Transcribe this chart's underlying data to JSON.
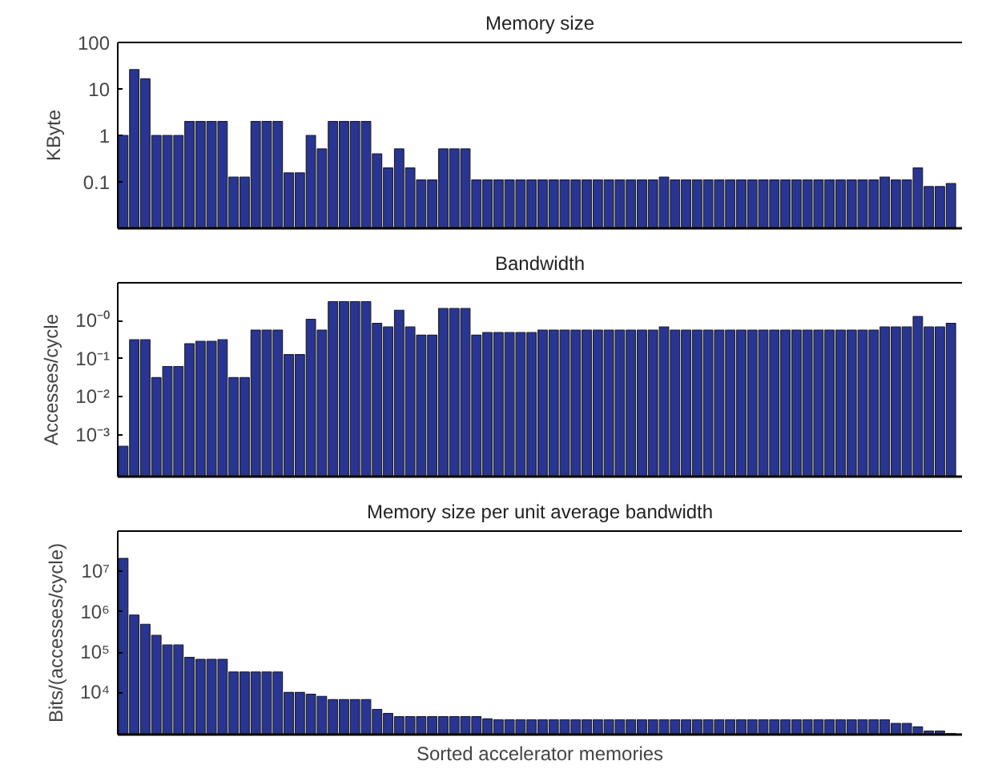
{
  "chart_data": [
    {
      "type": "bar",
      "title": "Memory size",
      "ylabel": "KByte",
      "log": true,
      "grid": false,
      "tick_labels": "y",
      "color": "#283593",
      "categories": [
        null,
        null,
        null,
        null,
        null,
        null,
        null,
        null,
        null,
        null,
        null,
        null,
        null,
        null,
        null,
        null,
        null,
        null,
        null,
        null,
        null,
        null,
        null,
        null,
        null,
        null,
        null,
        null,
        null,
        null,
        null,
        null,
        null,
        null,
        null,
        null,
        null,
        null,
        null,
        null,
        null,
        null,
        null,
        null,
        null,
        null,
        null,
        null,
        null,
        null,
        null,
        null,
        null,
        null,
        null,
        null,
        null,
        null,
        null,
        null,
        null,
        null,
        null,
        null,
        null,
        null,
        null,
        null,
        null,
        null,
        null,
        null,
        null,
        null,
        null,
        null
      ],
      "values": [
        1,
        26,
        16.5,
        1,
        1,
        1,
        2,
        2,
        2,
        2,
        0.127,
        0.127,
        2,
        2,
        2,
        0.156,
        0.156,
        1,
        0.51,
        2,
        2,
        2,
        2,
        0.4,
        0.2,
        0.51,
        0.2,
        0.11,
        0.11,
        0.51,
        0.51,
        0.51,
        0.11,
        0.11,
        0.11,
        0.11,
        0.11,
        0.11,
        0.11,
        0.11,
        0.11,
        0.11,
        0.11,
        0.11,
        0.11,
        0.11,
        0.11,
        0.11,
        0.11,
        0.127,
        0.11,
        0.11,
        0.11,
        0.11,
        0.11,
        0.11,
        0.11,
        0.11,
        0.11,
        0.11,
        0.11,
        0.11,
        0.11,
        0.11,
        0.11,
        0.11,
        0.11,
        0.11,
        0.11,
        0.127,
        0.11,
        0.11,
        0.2,
        0.079,
        0.079,
        0.092
      ],
      "ylim": [
        0.01,
        100
      ],
      "yticks": [
        0.1,
        1,
        10,
        100
      ]
    },
    {
      "type": "bar",
      "title": "Bandwidth",
      "ylabel": "Accesses/cycle",
      "log": true,
      "grid": false,
      "tick_labels": "y",
      "color": "#283593",
      "categories": [
        null,
        null,
        null,
        null,
        null,
        null,
        null,
        null,
        null,
        null,
        null,
        null,
        null,
        null,
        null,
        null,
        null,
        null,
        null,
        null,
        null,
        null,
        null,
        null,
        null,
        null,
        null,
        null,
        null,
        null,
        null,
        null,
        null,
        null,
        null,
        null,
        null,
        null,
        null,
        null,
        null,
        null,
        null,
        null,
        null,
        null,
        null,
        null,
        null,
        null,
        null,
        null,
        null,
        null,
        null,
        null,
        null,
        null,
        null,
        null,
        null,
        null,
        null,
        null,
        null,
        null,
        null,
        null,
        null,
        null,
        null,
        null,
        null,
        null,
        null,
        null
      ],
      "values": [
        0.0005,
        0.32,
        0.32,
        0.032,
        0.063,
        0.063,
        0.25,
        0.29,
        0.29,
        0.32,
        0.032,
        0.032,
        0.57,
        0.57,
        0.57,
        0.13,
        0.13,
        1.1,
        0.57,
        3.2,
        3.2,
        3.2,
        3.2,
        0.86,
        0.69,
        1.9,
        0.69,
        0.42,
        0.42,
        2.1,
        2.1,
        2.1,
        0.42,
        0.49,
        0.49,
        0.49,
        0.49,
        0.49,
        0.57,
        0.57,
        0.57,
        0.57,
        0.57,
        0.57,
        0.57,
        0.57,
        0.57,
        0.57,
        0.57,
        0.69,
        0.57,
        0.57,
        0.57,
        0.57,
        0.57,
        0.57,
        0.57,
        0.57,
        0.57,
        0.57,
        0.57,
        0.57,
        0.57,
        0.57,
        0.57,
        0.57,
        0.57,
        0.57,
        0.57,
        0.69,
        0.69,
        0.69,
        1.3,
        0.69,
        0.69,
        0.86
      ],
      "ylim": [
        8e-05,
        10
      ],
      "yticks": [
        {
          "value": 0.001,
          "label": "10⁻³"
        },
        {
          "value": 0.01,
          "label": "10⁻²"
        },
        {
          "value": 0.1,
          "label": "10⁻¹"
        },
        {
          "value": 1,
          "label": "10⁻⁰"
        }
      ]
    },
    {
      "type": "bar",
      "title": "Memory size per unit average bandwidth",
      "ylabel": "Bits/(accesses/cycle)",
      "xlabel": "Sorted accelerator memories",
      "log": true,
      "grid": false,
      "tick_labels": "y",
      "color": "#283593",
      "categories": [
        null,
        null,
        null,
        null,
        null,
        null,
        null,
        null,
        null,
        null,
        null,
        null,
        null,
        null,
        null,
        null,
        null,
        null,
        null,
        null,
        null,
        null,
        null,
        null,
        null,
        null,
        null,
        null,
        null,
        null,
        null,
        null,
        null,
        null,
        null,
        null,
        null,
        null,
        null,
        null,
        null,
        null,
        null,
        null,
        null,
        null,
        null,
        null,
        null,
        null,
        null,
        null,
        null,
        null,
        null,
        null,
        null,
        null,
        null,
        null,
        null,
        null,
        null,
        null,
        null,
        null,
        null,
        null,
        null,
        null,
        null,
        null,
        null,
        null,
        null,
        null
      ],
      "values": [
        21000000,
        830000,
        490000,
        260000,
        150000,
        150000,
        74000,
        66000,
        66000,
        66000,
        32000,
        32000,
        32000,
        32000,
        32000,
        10000,
        10000,
        9000,
        8000,
        6600,
        6600,
        6600,
        6600,
        3800,
        3000,
        2500,
        2500,
        2500,
        2500,
        2500,
        2500,
        2500,
        2500,
        2200,
        2100,
        2100,
        2100,
        2100,
        2100,
        2100,
        2100,
        2100,
        2100,
        2100,
        2100,
        2100,
        2100,
        2100,
        2100,
        2100,
        2100,
        2100,
        2100,
        2100,
        2100,
        2100,
        2100,
        2100,
        2100,
        2100,
        2100,
        2100,
        2100,
        2100,
        2100,
        2100,
        2100,
        2100,
        2100,
        2100,
        1700,
        1700,
        1400,
        1100,
        1100,
        950
      ],
      "ylim": [
        900,
        100000000
      ],
      "yticks": [
        {
          "value": 10000,
          "label": "10⁴"
        },
        {
          "value": 100000,
          "label": "10⁵"
        },
        {
          "value": 1000000,
          "label": "10⁶"
        },
        {
          "value": 10000000,
          "label": "10⁷"
        }
      ]
    }
  ]
}
